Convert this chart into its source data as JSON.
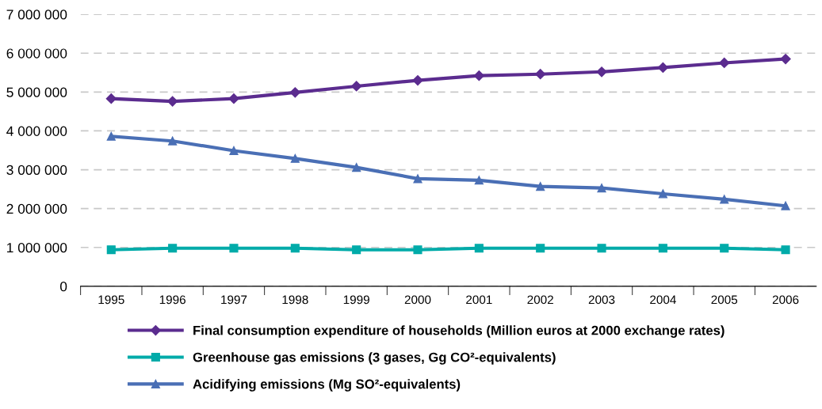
{
  "chart_data": {
    "type": "line",
    "categories": [
      "1995",
      "1996",
      "1997",
      "1998",
      "1999",
      "2000",
      "2001",
      "2002",
      "2003",
      "2004",
      "2005",
      "2006"
    ],
    "series": [
      {
        "name": "Final consumption expenditure of households (Million euros at 2000 exchange rates)",
        "color": "#5b2c8f",
        "marker": "diamond",
        "values": [
          4830000,
          4760000,
          4830000,
          4990000,
          5150000,
          5300000,
          5420000,
          5460000,
          5520000,
          5630000,
          5750000,
          5850000
        ]
      },
      {
        "name": "Greenhouse gas emissions (3 gases, Gg CO²-equivalents)",
        "color": "#00aba9",
        "marker": "square",
        "values": [
          940000,
          980000,
          980000,
          980000,
          940000,
          940000,
          980000,
          980000,
          980000,
          980000,
          980000,
          940000
        ]
      },
      {
        "name": "Acidifying emissions (Mg SO²-equivalents)",
        "color": "#4a6fb5",
        "marker": "triangle",
        "values": [
          3860000,
          3740000,
          3490000,
          3290000,
          3060000,
          2770000,
          2730000,
          2570000,
          2530000,
          2380000,
          2240000,
          2070000
        ]
      }
    ],
    "ylim": [
      0,
      7000000
    ],
    "yticks": [
      {
        "value": 0,
        "label": "0"
      },
      {
        "value": 1000000,
        "label": "1 000 000"
      },
      {
        "value": 2000000,
        "label": "2 000 000"
      },
      {
        "value": 3000000,
        "label": "3 000 000"
      },
      {
        "value": 4000000,
        "label": "4 000 000"
      },
      {
        "value": 5000000,
        "label": "5 000 000"
      },
      {
        "value": 6000000,
        "label": "6 000 000"
      },
      {
        "value": 7000000,
        "label": "7 000 000"
      }
    ],
    "grid": "y",
    "legend": "bottom",
    "line_style": "solid"
  }
}
